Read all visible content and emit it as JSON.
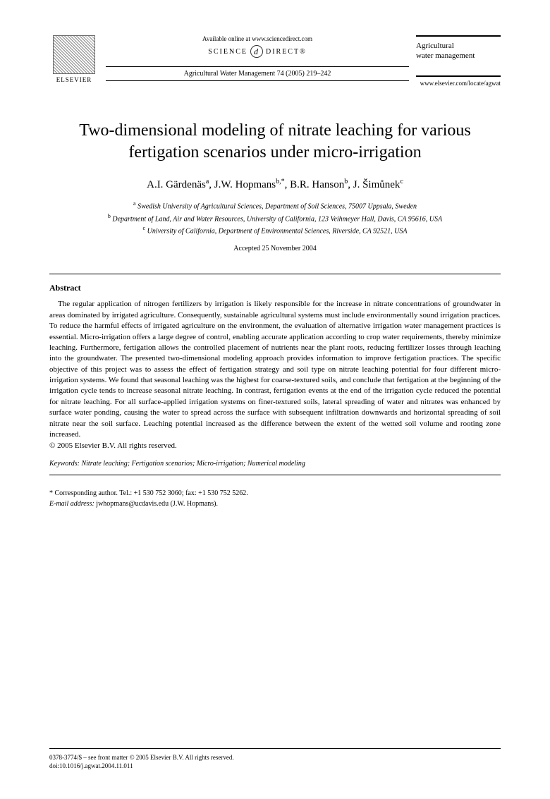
{
  "header": {
    "publisher_logo_text": "ELSEVIER",
    "available_online": "Available online at www.sciencedirect.com",
    "science_direct_left": "SCIENCE",
    "science_direct_right": "DIRECT®",
    "citation": "Agricultural Water Management 74 (2005) 219–242",
    "journal_name_line1": "Agricultural",
    "journal_name_line2": "water management",
    "locate_url": "www.elsevier.com/locate/agwat"
  },
  "title": "Two-dimensional modeling of nitrate leaching for various fertigation scenarios under micro-irrigation",
  "authors": [
    {
      "name": "A.I. Gärdenäs",
      "aff": "a"
    },
    {
      "name": "J.W. Hopmans",
      "aff": "b,*"
    },
    {
      "name": "B.R. Hanson",
      "aff": "b"
    },
    {
      "name": "J. Šimůnek",
      "aff": "c"
    }
  ],
  "affiliations": {
    "a": "Swedish University of Agricultural Sciences, Department of Soil Sciences, 75007 Uppsala, Sweden",
    "b": "Department of Land, Air and Water Resources, University of California, 123 Veihmeyer Hall, Davis, CA 95616, USA",
    "c": "University of California, Department of Environmental Sciences, Riverside, CA 92521, USA"
  },
  "accepted": "Accepted 25 November 2004",
  "abstract_heading": "Abstract",
  "abstract_body": "The regular application of nitrogen fertilizers by irrigation is likely responsible for the increase in nitrate concentrations of groundwater in areas dominated by irrigated agriculture. Consequently, sustainable agricultural systems must include environmentally sound irrigation practices. To reduce the harmful effects of irrigated agriculture on the environment, the evaluation of alternative irrigation water management practices is essential. Micro-irrigation offers a large degree of control, enabling accurate application according to crop water requirements, thereby minimize leaching. Furthermore, fertigation allows the controlled placement of nutrients near the plant roots, reducing fertilizer losses through leaching into the groundwater. The presented two-dimensional modeling approach provides information to improve fertigation practices. The specific objective of this project was to assess the effect of fertigation strategy and soil type on nitrate leaching potential for four different micro-irrigation systems. We found that seasonal leaching was the highest for coarse-textured soils, and conclude that fertigation at the beginning of the irrigation cycle tends to increase seasonal nitrate leaching. In contrast, fertigation events at the end of the irrigation cycle reduced the potential for nitrate leaching. For all surface-applied irrigation systems on finer-textured soils, lateral spreading of water and nitrates was enhanced by surface water ponding, causing the water to spread across the surface with subsequent infiltration downwards and horizontal spreading of soil nitrate near the soil surface. Leaching potential increased as the difference between the extent of the wetted soil volume and rooting zone increased.",
  "copyright": "© 2005 Elsevier B.V. All rights reserved.",
  "keywords": {
    "label": "Keywords:",
    "text": "Nitrate leaching; Fertigation scenarios; Micro-irrigation; Numerical modeling"
  },
  "corresponding": {
    "line": "* Corresponding author. Tel.: +1 530 752 3060; fax: +1 530 752 5262.",
    "email_label": "E-mail address:",
    "email": "jwhopmans@ucdavis.edu (J.W. Hopmans)."
  },
  "footer": {
    "issn": "0378-3774/$ – see front matter © 2005 Elsevier B.V. All rights reserved.",
    "doi": "doi:10.1016/j.agwat.2004.11.011"
  }
}
